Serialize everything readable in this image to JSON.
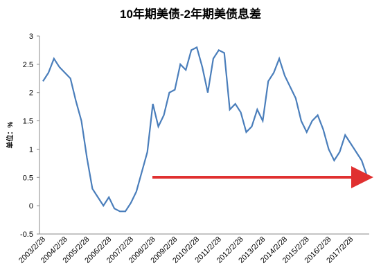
{
  "chart_data": {
    "type": "line",
    "title": "10年期美债-2年期美债息差",
    "y_label": "单位：%",
    "categories": [
      "2003/2/28",
      null,
      null,
      null,
      "2004/2/28",
      null,
      null,
      null,
      "2005/2/28",
      null,
      null,
      null,
      "2006/2/28",
      null,
      null,
      null,
      "2007/2/28",
      null,
      null,
      null,
      "2008/2/28",
      null,
      null,
      null,
      "2009/2/28",
      null,
      null,
      null,
      "2010/2/28",
      null,
      null,
      null,
      "2011/2/28",
      null,
      null,
      null,
      "2012/2/28",
      null,
      null,
      null,
      "2013/2/28",
      null,
      null,
      null,
      "2014/2/28",
      null,
      null,
      null,
      "2015/2/28",
      null,
      null,
      null,
      "2016/2/28",
      null,
      null,
      null,
      "2017/2/28",
      null,
      null,
      null
    ],
    "series": [
      {
        "color": "#4a7ebb",
        "values": [
          2.2,
          2.35,
          2.6,
          2.45,
          2.35,
          2.25,
          1.85,
          1.5,
          0.85,
          0.3,
          0.15,
          0.0,
          0.15,
          -0.05,
          -0.1,
          -0.1,
          0.05,
          0.25,
          0.6,
          0.95,
          1.8,
          1.4,
          1.6,
          2.0,
          2.05,
          2.5,
          2.4,
          2.75,
          2.8,
          2.45,
          2.0,
          2.6,
          2.75,
          2.7,
          1.7,
          1.8,
          1.65,
          1.3,
          1.4,
          1.7,
          1.5,
          2.2,
          2.35,
          2.6,
          2.3,
          2.1,
          1.9,
          1.5,
          1.3,
          1.5,
          1.6,
          1.35,
          1.0,
          0.8,
          0.95,
          1.25,
          1.1,
          0.95,
          0.8,
          0.52
        ]
      }
    ],
    "ylim": [
      -0.5,
      3
    ],
    "yticks": [
      -0.5,
      0,
      0.5,
      1,
      1.5,
      2,
      2.5,
      3
    ]
  }
}
